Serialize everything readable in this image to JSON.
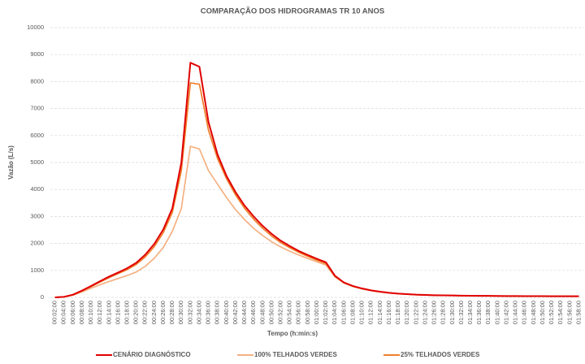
{
  "chart_data": {
    "type": "line",
    "title": "COMPARAÇÃO DOS HIDROGRAMAS TR 10 ANOS",
    "x_label": "Tempo (h:min:s)",
    "y_label": "Vazão (L/s)",
    "categories": [
      "00:02:00",
      "00:04:00",
      "00:06:00",
      "00:08:00",
      "00:10:00",
      "00:12:00",
      "00:14:00",
      "00:16:00",
      "00:18:00",
      "00:20:00",
      "00:22:00",
      "00:24:00",
      "00:26:00",
      "00:28:00",
      "00:30:00",
      "00:32:00",
      "00:34:00",
      "00:36:00",
      "00:38:00",
      "00:40:00",
      "00:42:00",
      "00:44:00",
      "00:46:00",
      "00:48:00",
      "00:50:00",
      "00:52:00",
      "00:54:00",
      "00:56:00",
      "00:58:00",
      "01:00:00",
      "01:02:00",
      "01:04:00",
      "01:06:00",
      "01:08:00",
      "01:10:00",
      "01:12:00",
      "01:14:00",
      "01:16:00",
      "01:18:00",
      "01:20:00",
      "01:22:00",
      "01:24:00",
      "01:26:00",
      "01:28:00",
      "01:30:00",
      "01:32:00",
      "01:34:00",
      "01:36:00",
      "01:38:00",
      "01:40:00",
      "01:42:00",
      "01:44:00",
      "01:46:00",
      "01:48:00",
      "01:50:00",
      "01:52:00",
      "01:54:00",
      "01:56:00",
      "01:58:00"
    ],
    "series": [
      {
        "name": "CENÁRIO DIAGNÓSTICO",
        "color": "#e00000",
        "values": [
          0,
          20,
          100,
          250,
          420,
          600,
          770,
          920,
          1080,
          1280,
          1580,
          1980,
          2520,
          3300,
          5000,
          8700,
          8550,
          6500,
          5300,
          4500,
          3900,
          3400,
          3000,
          2650,
          2350,
          2100,
          1900,
          1720,
          1570,
          1430,
          1300,
          800,
          550,
          420,
          330,
          260,
          210,
          170,
          140,
          120,
          100,
          90,
          80,
          75,
          70,
          65,
          60,
          58,
          55,
          52,
          50,
          48,
          46,
          45,
          44,
          43,
          42,
          41,
          40
        ]
      },
      {
        "name": "100% TELHADOS VERDES",
        "color": "#f4b183",
        "values": [
          0,
          15,
          80,
          200,
          340,
          470,
          590,
          700,
          810,
          940,
          1150,
          1450,
          1850,
          2450,
          3300,
          5600,
          5500,
          4700,
          4200,
          3700,
          3250,
          2880,
          2560,
          2290,
          2060,
          1870,
          1710,
          1570,
          1440,
          1320,
          1200,
          760,
          530,
          400,
          315,
          250,
          200,
          162,
          135,
          115,
          96,
          86,
          77,
          72,
          67,
          62,
          58,
          56,
          53,
          50,
          48,
          46,
          44,
          43,
          42,
          41,
          40,
          39,
          38
        ]
      },
      {
        "name": "25% TELHADOS VERDES",
        "color": "#f07e2a",
        "values": [
          0,
          18,
          95,
          240,
          400,
          570,
          730,
          880,
          1030,
          1220,
          1500,
          1880,
          2400,
          3150,
          4700,
          7950,
          7900,
          6200,
          5150,
          4400,
          3800,
          3300,
          2900,
          2560,
          2270,
          2030,
          1840,
          1670,
          1520,
          1380,
          1250,
          780,
          540,
          410,
          320,
          255,
          205,
          165,
          138,
          118,
          98,
          88,
          79,
          74,
          69,
          64,
          59,
          57,
          54,
          51,
          49,
          47,
          45,
          44,
          43,
          42,
          41,
          40,
          39
        ]
      }
    ],
    "ylim": [
      0,
      10000
    ],
    "yticks": [
      0,
      1000,
      2000,
      3000,
      4000,
      5000,
      6000,
      7000,
      8000,
      9000,
      10000
    ],
    "grid": true
  }
}
